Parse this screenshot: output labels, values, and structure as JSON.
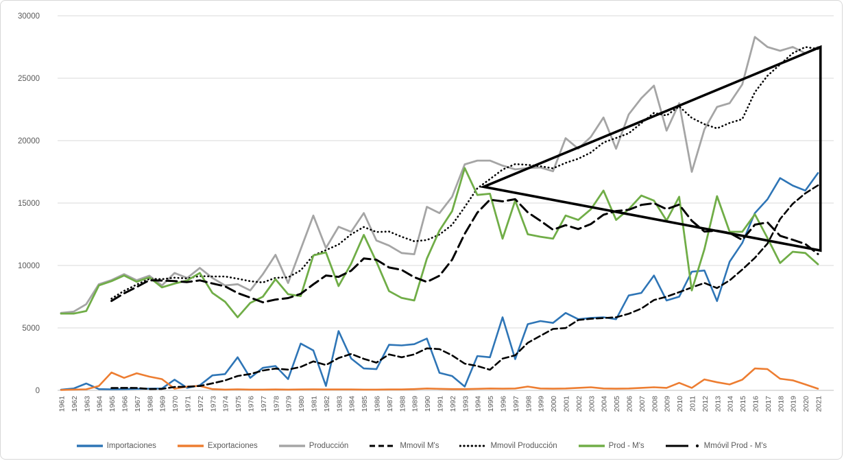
{
  "chart_data": {
    "type": "line",
    "title": "",
    "xlabel": "",
    "ylabel": "",
    "ylim": [
      0,
      30000
    ],
    "ytick_step": 5000,
    "grid": true,
    "legend_position": "bottom",
    "x": [
      1961,
      1962,
      1963,
      1964,
      1965,
      1966,
      1967,
      1968,
      1969,
      1970,
      1971,
      1972,
      1973,
      1974,
      1975,
      1976,
      1977,
      1978,
      1979,
      1980,
      1981,
      1982,
      1983,
      1984,
      1985,
      1986,
      1987,
      1988,
      1989,
      1990,
      1991,
      1992,
      1993,
      1994,
      1995,
      1996,
      1997,
      1998,
      1999,
      2000,
      2001,
      2002,
      2003,
      2004,
      2005,
      2006,
      2007,
      2008,
      2009,
      2010,
      2011,
      2012,
      2013,
      2014,
      2015,
      2016,
      2017,
      2018,
      2019,
      2020,
      2021
    ],
    "series": [
      {
        "name": "Importaciones",
        "color": "#2E75B6",
        "dash": "solid",
        "width": 2.6,
        "values": [
          50,
          150,
          550,
          100,
          80,
          100,
          120,
          130,
          150,
          850,
          200,
          400,
          1200,
          1300,
          2650,
          1000,
          1800,
          1950,
          900,
          3750,
          3200,
          350,
          4750,
          2550,
          1750,
          1700,
          3650,
          3600,
          3700,
          4150,
          1400,
          1150,
          300,
          2750,
          2650,
          5850,
          2500,
          5300,
          5550,
          5400,
          6200,
          5700,
          5800,
          5850,
          5700,
          7600,
          7800,
          9200,
          7200,
          7500,
          9500,
          9600,
          7150,
          10300,
          11800,
          14200,
          15300,
          17000,
          16400,
          16000,
          17400
        ]
      },
      {
        "name": "Exportaciones",
        "color": "#ED7D31",
        "dash": "solid",
        "width": 2.6,
        "values": [
          30,
          60,
          80,
          350,
          1430,
          1000,
          1370,
          1100,
          900,
          130,
          300,
          350,
          100,
          60,
          80,
          60,
          60,
          70,
          60,
          70,
          80,
          70,
          70,
          70,
          60,
          60,
          70,
          70,
          100,
          150,
          120,
          100,
          100,
          120,
          150,
          130,
          150,
          300,
          150,
          130,
          150,
          200,
          250,
          150,
          130,
          150,
          200,
          250,
          200,
          600,
          200,
          875,
          650,
          475,
          850,
          1750,
          1700,
          930,
          800,
          475,
          130
        ]
      },
      {
        "name": "Producción",
        "color": "#A5A5A5",
        "dash": "solid",
        "width": 2.8,
        "values": [
          6200,
          6300,
          6900,
          8500,
          8830,
          9300,
          8820,
          9180,
          8400,
          9400,
          9000,
          9800,
          9000,
          8400,
          8500,
          8000,
          9300,
          10850,
          8600,
          11300,
          14000,
          11400,
          13100,
          12700,
          14200,
          12000,
          11600,
          11000,
          10900,
          14700,
          14200,
          15500,
          18100,
          18400,
          18400,
          18000,
          17700,
          17800,
          17850,
          17550,
          20200,
          19350,
          20300,
          21850,
          19350,
          22100,
          23400,
          24400,
          20800,
          23000,
          17500,
          20900,
          22700,
          23000,
          24500,
          28300,
          27500,
          27200,
          27500,
          27000,
          27500
        ]
      },
      {
        "name": "Mmovil M's",
        "color": "#000000",
        "dash": "dash",
        "width": 2.6,
        "values": [
          null,
          null,
          null,
          null,
          186,
          196,
          190,
          106,
          116,
          270,
          290,
          346,
          560,
          790,
          1150,
          1310,
          1590,
          1740,
          1660,
          1880,
          2320,
          2030,
          2590,
          2920,
          2520,
          2220,
          2880,
          2650,
          2880,
          3360,
          3300,
          2800,
          2140,
          1950,
          1650,
          2540,
          2810,
          3810,
          4370,
          4920,
          4990,
          5630,
          5730,
          5790,
          5850,
          6130,
          6550,
          7230,
          7500,
          7860,
          8240,
          8600,
          8190,
          8810,
          9670,
          10610,
          11750,
          13720,
          14940,
          15780,
          16420
        ]
      },
      {
        "name": "Mmovil Producción",
        "color": "#000000",
        "dash": "dot",
        "width": 2.6,
        "values": [
          null,
          null,
          null,
          null,
          7346,
          7966,
          8470,
          8926,
          8906,
          9020,
          8960,
          9156,
          9120,
          9120,
          8940,
          8740,
          8640,
          9010,
          9050,
          9610,
          10810,
          11230,
          11680,
          12500,
          13080,
          12680,
          12720,
          12300,
          11940,
          12040,
          12480,
          13260,
          14680,
          16180,
          16920,
          17680,
          18120,
          18060,
          17950,
          17780,
          18220,
          18550,
          19050,
          19850,
          20210,
          20590,
          21400,
          22220,
          22010,
          22740,
          21820,
          21320,
          20980,
          21420,
          21720,
          23880,
          25200,
          26100,
          27000,
          27500,
          27340
        ]
      },
      {
        "name": "Prod - M's",
        "color": "#70AD47",
        "dash": "solid",
        "width": 2.8,
        "values": [
          6150,
          6150,
          6350,
          8400,
          8750,
          9200,
          8700,
          9050,
          8250,
          8550,
          8800,
          9400,
          7800,
          7100,
          5850,
          7000,
          7500,
          8900,
          7700,
          7550,
          10800,
          11050,
          8350,
          10150,
          12450,
          10300,
          7950,
          7400,
          7200,
          10550,
          12800,
          14350,
          17800,
          15650,
          15750,
          12150,
          15200,
          12500,
          12300,
          12150,
          14000,
          13650,
          14500,
          16000,
          13650,
          14500,
          15600,
          15200,
          13600,
          15500,
          8000,
          11300,
          15550,
          12700,
          12700,
          14100,
          12200,
          10200,
          11100,
          11000,
          10100
        ]
      },
      {
        "name": "Mmóvil Prod - M's",
        "color": "#000000",
        "dash": "longdash",
        "width": 3.0,
        "legend_dot": true,
        "values": [
          null,
          null,
          null,
          null,
          7160,
          7770,
          8280,
          8820,
          8790,
          8750,
          8670,
          8810,
          8560,
          8330,
          7790,
          7430,
          7050,
          7270,
          7390,
          7730,
          8490,
          9200,
          9090,
          9580,
          10560,
          10460,
          9840,
          9650,
          9060,
          8680,
          9180,
          10460,
          12540,
          14230,
          15270,
          15140,
          15310,
          14250,
          13580,
          12860,
          13230,
          12920,
          13320,
          14060,
          14360,
          14460,
          14850,
          14990,
          14510,
          14880,
          13580,
          12720,
          12790,
          12610,
          12050,
          13270,
          13450,
          12380,
          12060,
          11720,
          10920
        ]
      }
    ],
    "annotation": {
      "shape": "triangle-megaphone",
      "color": "#000000",
      "stroke_width": 3.6,
      "points_year_value": [
        [
          1994.5,
          16300
        ],
        [
          2021.2,
          27500
        ],
        [
          2021.2,
          11200
        ]
      ]
    }
  },
  "axes": {
    "y_ticks": [
      "0",
      "5000",
      "10000",
      "15000",
      "20000",
      "25000",
      "30000"
    ],
    "x_ticks": [
      "1961",
      "1962",
      "1963",
      "1964",
      "1965",
      "1966",
      "1967",
      "1968",
      "1969",
      "1970",
      "1971",
      "1972",
      "1973",
      "1974",
      "1975",
      "1976",
      "1977",
      "1978",
      "1979",
      "1980",
      "1981",
      "1982",
      "1983",
      "1984",
      "1985",
      "1986",
      "1987",
      "1988",
      "1989",
      "1990",
      "1991",
      "1992",
      "1993",
      "1994",
      "1995",
      "1996",
      "1997",
      "1998",
      "1999",
      "2000",
      "2001",
      "2002",
      "2003",
      "2004",
      "2005",
      "2006",
      "2007",
      "2008",
      "2009",
      "2010",
      "2011",
      "2012",
      "2013",
      "2014",
      "2015",
      "2016",
      "2017",
      "2018",
      "2019",
      "2020",
      "2021"
    ],
    "tick_color": "#595959",
    "gridline_color": "#D9D9D9",
    "axis_line_color": "#BFBFBF"
  },
  "legend": {
    "items": [
      "Importaciones",
      "Exportaciones",
      "Producción",
      "Mmovil M's",
      "Mmovil Producción",
      "Prod - M's",
      "Mmóvil Prod - M's"
    ]
  }
}
